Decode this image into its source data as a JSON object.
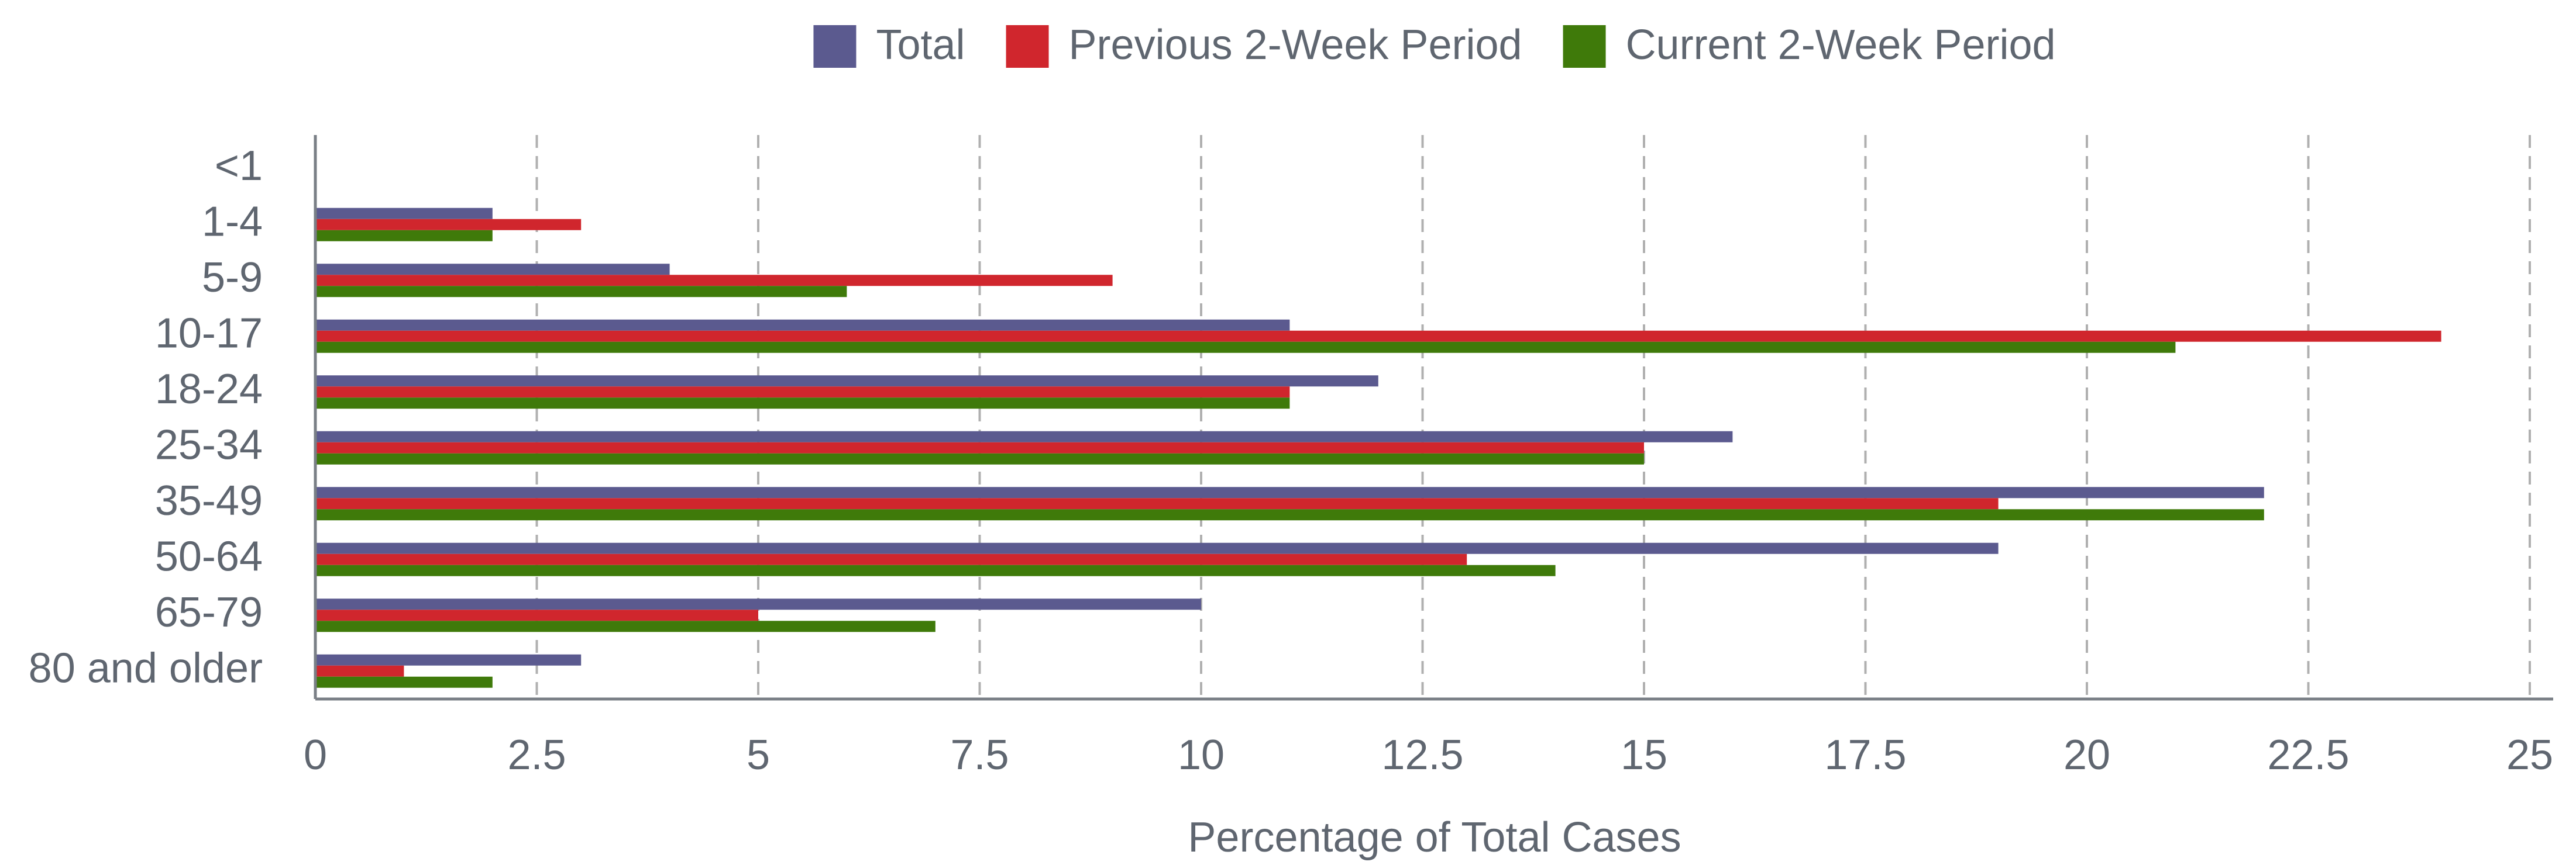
{
  "chart_data": {
    "type": "barh",
    "categories": [
      "<1",
      "1-4",
      "5-9",
      "10-17",
      "18-24",
      "25-34",
      "35-49",
      "50-64",
      "65-79",
      "80 and older"
    ],
    "series": [
      {
        "name": "Total",
        "color": "#5b5a8f",
        "values": [
          0,
          2,
          4,
          11,
          12,
          16,
          22,
          19,
          10,
          3
        ]
      },
      {
        "name": "Previous 2-Week Period",
        "color": "#d0262d",
        "values": [
          0,
          3,
          9,
          24,
          11,
          15,
          19,
          13,
          5,
          1
        ]
      },
      {
        "name": "Current 2-Week Period",
        "color": "#3f7a0a",
        "values": [
          0,
          2,
          6,
          21,
          11,
          15,
          22,
          14,
          7,
          2
        ]
      }
    ],
    "x_label": "Percentage of Total Cases",
    "xlim": [
      0,
      25
    ],
    "xticks": [
      0,
      2.5,
      5,
      7.5,
      10,
      12.5,
      15,
      17.5,
      20,
      22.5,
      25
    ],
    "grid": true,
    "legend": "top"
  }
}
